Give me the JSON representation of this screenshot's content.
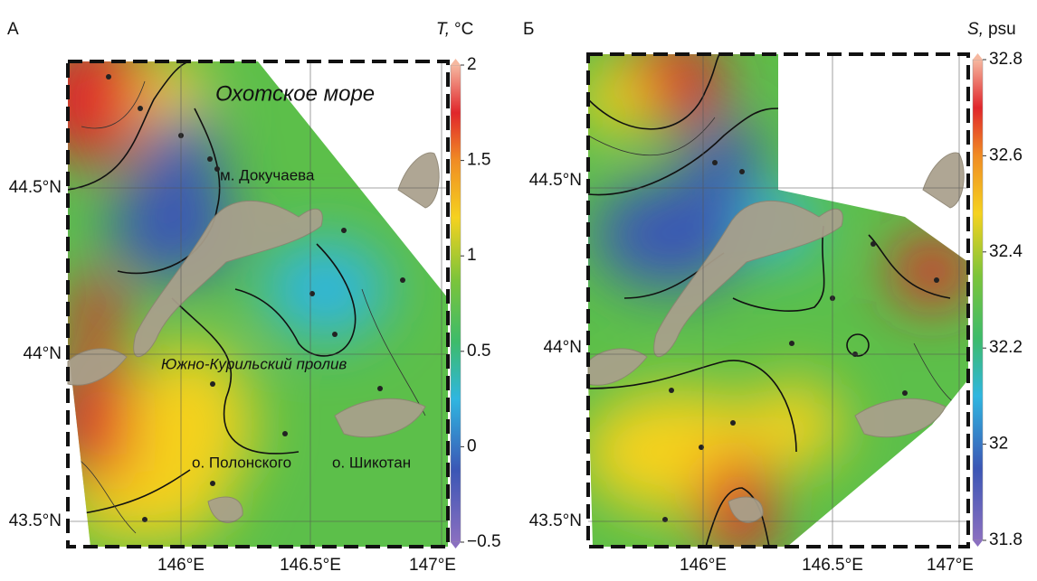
{
  "panels": [
    {
      "label": "А",
      "colorbar": {
        "symbol": "T,",
        "unit": "°C",
        "range": [
          -0.5,
          2
        ],
        "ticks": [
          2,
          1.5,
          1,
          0.5,
          0,
          {
            "value": -0.5,
            "label": "−0.5"
          }
        ]
      },
      "lat_labels": [
        "44.5°N",
        "44°N",
        "43.5°N"
      ],
      "lon_labels": [
        "146°E",
        "146.5°E",
        "147°E"
      ],
      "annotations": [
        "Охотское море",
        "м. Докучаева",
        "Южно-Курильский пролив",
        "о. Полонского",
        "о. Шикотан"
      ]
    },
    {
      "label": "Б",
      "colorbar": {
        "symbol": "S,",
        "unit": "psu",
        "range": [
          31.8,
          32.8
        ],
        "ticks": [
          32.8,
          32.6,
          32.4,
          32.2,
          32,
          31.8
        ]
      },
      "lat_labels": [
        "44.5°N",
        "44°N",
        "43.5°N"
      ],
      "lon_labels": [
        "146°E",
        "146.5°E",
        "147°E"
      ]
    }
  ]
}
